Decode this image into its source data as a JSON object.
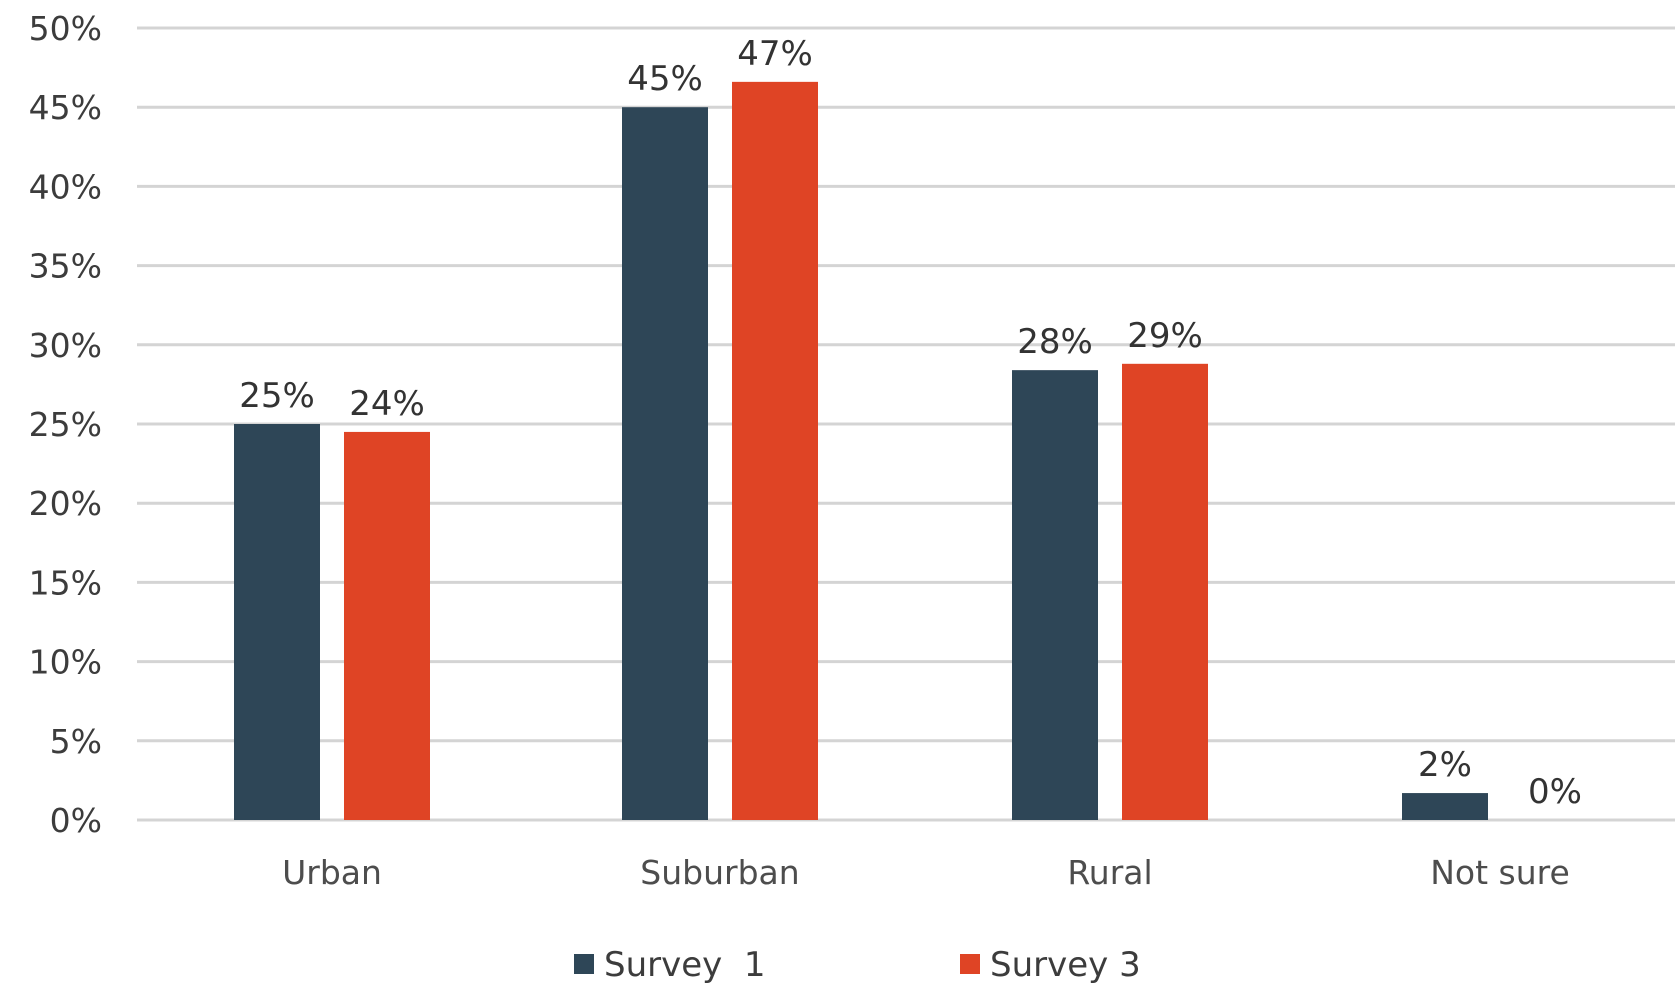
{
  "chart_data": {
    "type": "bar",
    "title": "",
    "xlabel": "",
    "ylabel": "",
    "categories": [
      "Urban",
      "Suburban",
      "Rural",
      "Not sure"
    ],
    "series": [
      {
        "name": "Survey  1",
        "color": "#2e4657",
        "values": [
          25,
          45,
          28.4,
          1.7
        ],
        "labels": [
          "25%",
          "45%",
          "28%",
          "2%"
        ]
      },
      {
        "name": "Survey 3",
        "color": "#df4425",
        "values": [
          24.5,
          46.6,
          28.8,
          0
        ],
        "labels": [
          "24%",
          "47%",
          "29%",
          "0%"
        ]
      }
    ],
    "ylim": [
      0,
      50
    ],
    "y_ticks": [
      0,
      5,
      10,
      15,
      20,
      25,
      30,
      35,
      40,
      45,
      50
    ],
    "y_tick_labels": [
      "0%",
      "5%",
      "10%",
      "15%",
      "20%",
      "25%",
      "30%",
      "35%",
      "40%",
      "45%",
      "50%"
    ],
    "grid": true,
    "legend_position": "bottom"
  }
}
